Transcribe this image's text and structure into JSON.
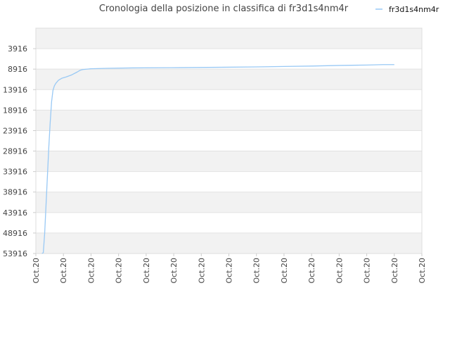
{
  "chart_data": {
    "type": "line",
    "title": "Cronologia della posizione in classifica di fr3d1s4nm4r",
    "xlabel": "",
    "ylabel": "",
    "y_reversed": true,
    "ylim": [
      53916,
      -1084
    ],
    "y_ticks": [
      3916,
      8916,
      13916,
      18916,
      23916,
      28916,
      33916,
      38916,
      43916,
      48916,
      53916
    ],
    "y_tick_labels": [
      "3916",
      "8916",
      "13916",
      "18916",
      "23916",
      "28916",
      "33916",
      "38916",
      "43916",
      "48916",
      "53916"
    ],
    "x_ticks": [
      0,
      1,
      2,
      3,
      4,
      5,
      6,
      7,
      8,
      9,
      10,
      11,
      12,
      13,
      14
    ],
    "x_tick_labels": [
      "Oct.20",
      "Oct.20",
      "Oct.20",
      "Oct.20",
      "Oct.20",
      "Oct.20",
      "Oct.20",
      "Oct.20",
      "Oct.20",
      "Oct.20",
      "Oct.20",
      "Oct.20",
      "Oct.20",
      "Oct.20",
      "Oct.20"
    ],
    "xlim": [
      0,
      14
    ],
    "grid": true,
    "band_color": "#f2f2f2",
    "legend_position": "top-right",
    "series": [
      {
        "name": "fr3d1s4nm4r",
        "color": "#99c9f5",
        "x": [
          0.22,
          0.27,
          0.32,
          0.37,
          0.42,
          0.47,
          0.52,
          0.57,
          0.62,
          0.67,
          0.72,
          0.82,
          0.95,
          1.1,
          1.3,
          1.5,
          1.6,
          1.7,
          2.0,
          2.6,
          3.5,
          4.9,
          6.6,
          8.0,
          9.0,
          10.0,
          11.0,
          12.0,
          12.6,
          13.0
        ],
        "y": [
          53916,
          53716,
          48916,
          41916,
          34916,
          27916,
          21916,
          16916,
          14116,
          13016,
          12416,
          11616,
          11116,
          10816,
          10316,
          9616,
          9216,
          9016,
          8816,
          8716,
          8616,
          8566,
          8466,
          8366,
          8266,
          8166,
          8016,
          7916,
          7816,
          7816
        ]
      }
    ]
  }
}
